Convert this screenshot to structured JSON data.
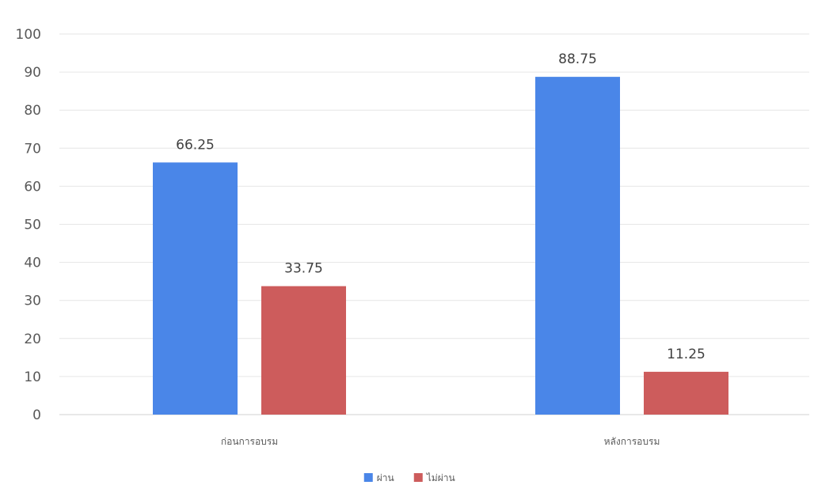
{
  "chart_data": {
    "type": "bar",
    "title": "",
    "xlabel": "",
    "ylabel": "",
    "categories": [
      "ก่อนการอบรม",
      "หลังการอบรม"
    ],
    "series": [
      {
        "name": "ผ่าน",
        "color": "#4a86e8",
        "values": [
          66.25,
          88.75
        ]
      },
      {
        "name": "ไม่ผ่าน",
        "color": "#cd5c5c",
        "values": [
          33.75,
          11.25
        ]
      }
    ],
    "ylim": [
      0,
      100
    ],
    "yticks": [
      0,
      10,
      20,
      30,
      40,
      50,
      60,
      70,
      80,
      90,
      100
    ],
    "grid": true,
    "legend_position": "bottom",
    "data_labels": true
  }
}
